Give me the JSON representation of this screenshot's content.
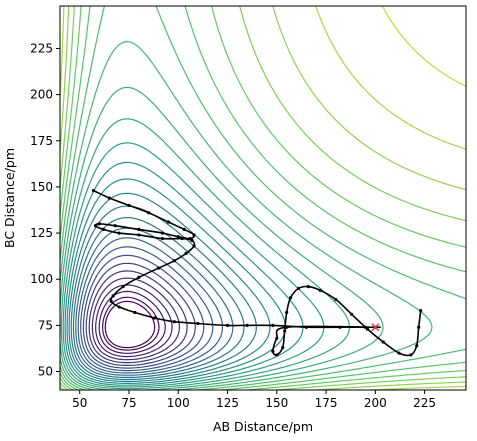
{
  "chart_data": {
    "type": "contour",
    "xlabel": "AB Distance/pm",
    "ylabel": "BC Distance/pm",
    "xlim": [
      40,
      246
    ],
    "ylim": [
      40,
      248
    ],
    "xticks": [
      50,
      75,
      100,
      125,
      150,
      175,
      200,
      225
    ],
    "yticks": [
      50,
      75,
      100,
      125,
      150,
      175,
      200,
      225
    ],
    "colormap": [
      "#440154",
      "#3b528b",
      "#21918c",
      "#5ec962",
      "#fde725"
    ],
    "contours": {
      "asymptote": 74,
      "levels_count": 30,
      "well_level": 0.12
    },
    "trajectory": {
      "color": "#000000",
      "points": [
        [
          57,
          148
        ],
        [
          65,
          144
        ],
        [
          75,
          140
        ],
        [
          85,
          136
        ],
        [
          95,
          131
        ],
        [
          103,
          127
        ],
        [
          108,
          124
        ],
        [
          106,
          122
        ],
        [
          100,
          123
        ],
        [
          92,
          125
        ],
        [
          80,
          127
        ],
        [
          68,
          129
        ],
        [
          60,
          130
        ],
        [
          58,
          129
        ],
        [
          62,
          127
        ],
        [
          70,
          125
        ],
        [
          80,
          124
        ],
        [
          92,
          122
        ],
        [
          102,
          122
        ],
        [
          107,
          121
        ],
        [
          108,
          118
        ],
        [
          104,
          114
        ],
        [
          98,
          110
        ],
        [
          90,
          106
        ],
        [
          80,
          101
        ],
        [
          72,
          96
        ],
        [
          67,
          91
        ],
        [
          66,
          88
        ],
        [
          70,
          85
        ],
        [
          78,
          82
        ],
        [
          88,
          79
        ],
        [
          98,
          77
        ],
        [
          110,
          76
        ],
        [
          125,
          75
        ],
        [
          135,
          75
        ],
        [
          148,
          75
        ],
        [
          165,
          74
        ],
        [
          182,
          74
        ],
        [
          195,
          74
        ],
        [
          200,
          74
        ],
        [
          155,
          74
        ],
        [
          150,
          68
        ],
        [
          148,
          61
        ],
        [
          150,
          59
        ],
        [
          153,
          63
        ],
        [
          154,
          72
        ],
        [
          155,
          82
        ],
        [
          157,
          90
        ],
        [
          161,
          95
        ],
        [
          166,
          96
        ],
        [
          172,
          94
        ],
        [
          180,
          89
        ],
        [
          188,
          81
        ],
        [
          196,
          73
        ],
        [
          204,
          66
        ],
        [
          212,
          60
        ],
        [
          218,
          59
        ],
        [
          221,
          64
        ],
        [
          222,
          74
        ],
        [
          223,
          83
        ]
      ]
    },
    "marker": {
      "x": 200,
      "y": 74,
      "symbol": "x",
      "color": "#e53935"
    }
  }
}
